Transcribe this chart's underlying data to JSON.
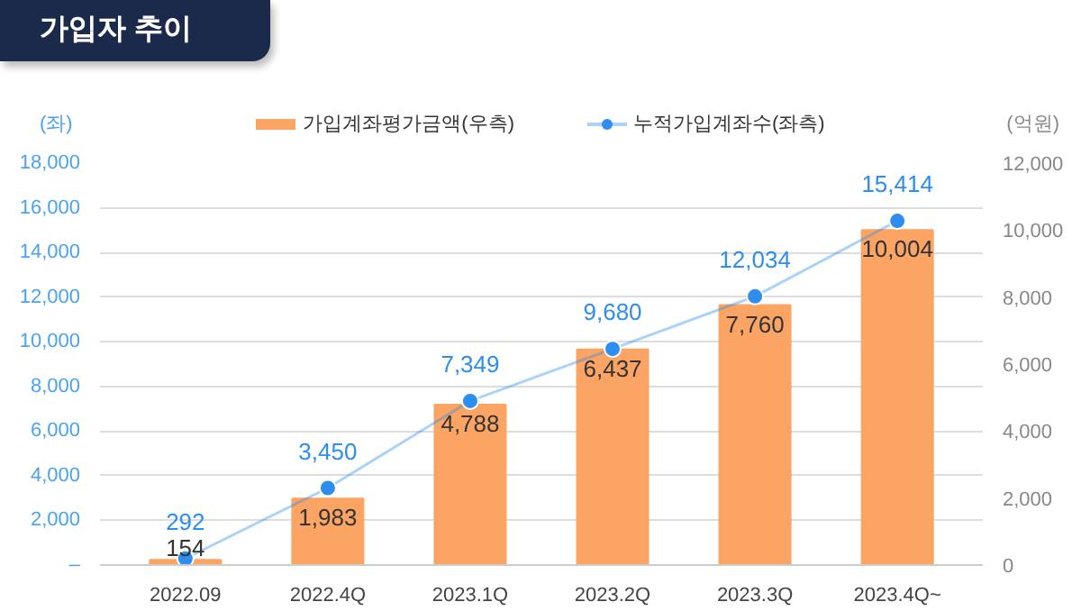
{
  "chart_data": {
    "type": "bar",
    "title": "가입자 추이",
    "ylabel": "(좌)",
    "y2label": "(억원)",
    "categories": [
      "2022.09",
      "2022.4Q",
      "2023.1Q",
      "2023.2Q",
      "2023.3Q",
      "2023.4Q~"
    ],
    "series": [
      {
        "name": "가입계좌평가금액(우측)",
        "axis": "y2",
        "color": "#fba463",
        "values": [
          154,
          1983,
          4788,
          6437,
          7760,
          10004
        ],
        "value_labels": [
          "154",
          "1,983",
          "4,788",
          "6,437",
          "7,760",
          "10,004"
        ]
      },
      {
        "name": "누적가입계좌수(좌측)",
        "type": "line",
        "axis": "y",
        "color": "#2d8ef0",
        "marker": "circle",
        "values": [
          292,
          3450,
          7349,
          9680,
          12034,
          15414
        ],
        "value_labels": [
          "292",
          "3,450",
          "7,349",
          "9,680",
          "12,034",
          "15,414"
        ]
      }
    ],
    "ylim": [
      0,
      18000
    ],
    "yticks": [
      {
        "value": 0,
        "label": "–"
      },
      {
        "value": 2000,
        "label": "2,000"
      },
      {
        "value": 4000,
        "label": "4,000"
      },
      {
        "value": 6000,
        "label": "6,000"
      },
      {
        "value": 8000,
        "label": "8,000"
      },
      {
        "value": 10000,
        "label": "10,000"
      },
      {
        "value": 12000,
        "label": "12,000"
      },
      {
        "value": 14000,
        "label": "14,000"
      },
      {
        "value": 16000,
        "label": "16,000"
      },
      {
        "value": 18000,
        "label": "18,000"
      }
    ],
    "y2lim": [
      0,
      12000
    ],
    "y2ticks": [
      0,
      {
        "value": 2000,
        "label": "2,000"
      },
      {
        "value": 4000,
        "label": "4,000"
      },
      {
        "value": 6000,
        "label": "6,000"
      },
      {
        "value": 8000,
        "label": "8,000"
      },
      {
        "value": 10000,
        "label": "10,000"
      },
      {
        "value": 12000,
        "label": "12,000"
      }
    ],
    "grid": "y",
    "legend": "top"
  }
}
